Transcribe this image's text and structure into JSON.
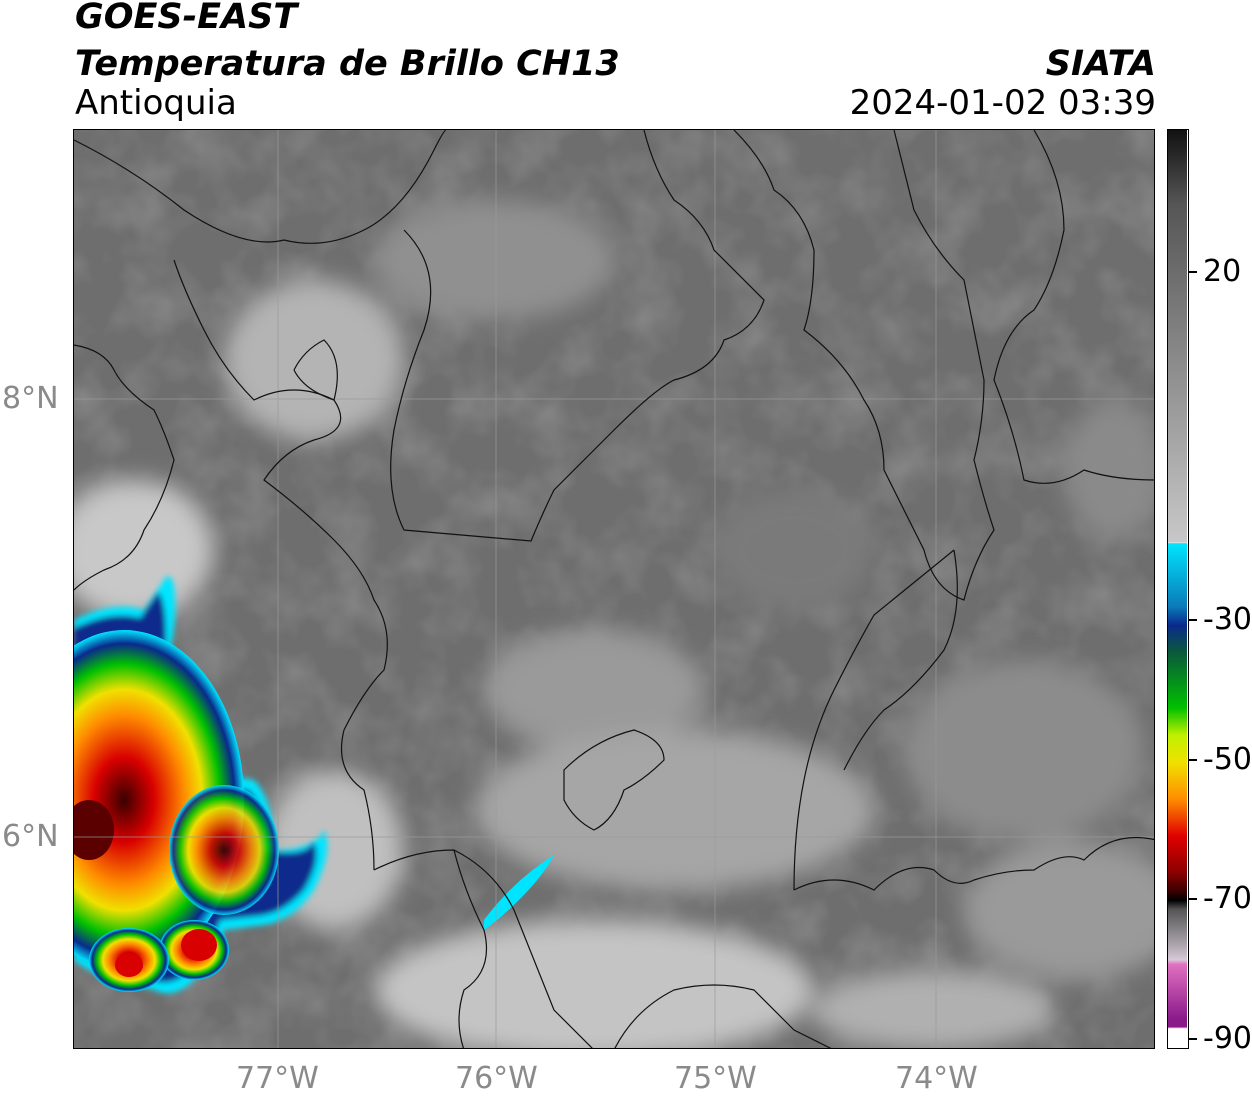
{
  "header": {
    "satellite": "GOES-EAST",
    "product": "Temperatura de Brillo CH13",
    "region": "Antioquia",
    "agency": "SIATA",
    "datetime": "2024-01-02 03:39"
  },
  "map": {
    "lat_ticks": [
      "8°N",
      "6°N"
    ],
    "lon_ticks": [
      "77°W",
      "76°W",
      "75°W",
      "74°W"
    ]
  },
  "colorbar": {
    "labels": [
      "20",
      "-30",
      "-50",
      "-70",
      "-90"
    ],
    "colors": {
      "warm_gray": "#787878",
      "cold_white": "#f2f2f2",
      "cyan": "#00e5ff",
      "blue": "#0a2a8c",
      "green": "#00c000",
      "yellow": "#f0f000",
      "orange": "#ff8c00",
      "red": "#d80000",
      "dark_red": "#5a0000",
      "black": "#000000",
      "pink": "#e070c0",
      "purple": "#8a1a8a"
    }
  }
}
